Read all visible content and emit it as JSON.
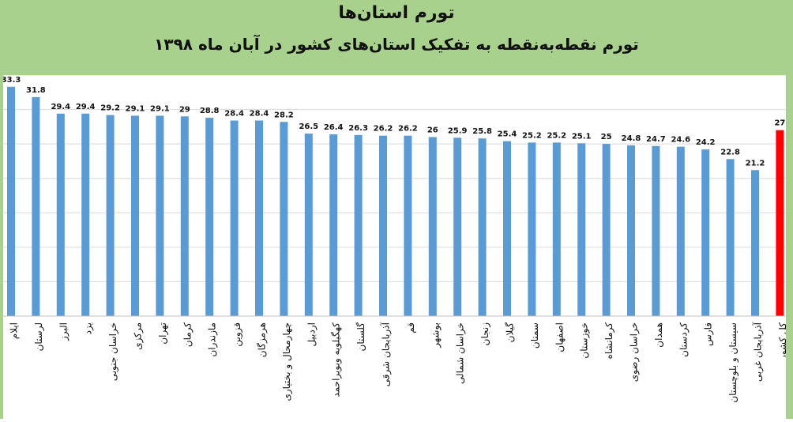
{
  "chart_data": {
    "type": "bar",
    "title": "تورم استان‌ها",
    "subtitle": "تورم نقطه‌به‌نقطه به تفکیک استان‌های کشور در آبان ماه ۱۳۹۸",
    "categories": [
      "ایلام",
      "لرستان",
      "البرز",
      "یزد",
      "خراسان جنوبی",
      "مرکزی",
      "تهران",
      "کرمان",
      "مازندران",
      "قزوین",
      "هرمزگان",
      "چهارمحال و بختیاری",
      "اردبیل",
      "کهگیلویه وبویراحمد",
      "گلستان",
      "آذربایجان شرقی",
      "قم",
      "بوشهر",
      "خراسان شمالی",
      "زنجان",
      "گیلان",
      "سمنان",
      "اصفهان",
      "خوزستان",
      "کرمانشاه",
      "خراسان رضوی",
      "همدان",
      "کردستان",
      "فارس",
      "سیستان و بلوچستان",
      "آذربایجان غربی",
      "کل کشور"
    ],
    "values": [
      33.3,
      31.8,
      29.4,
      29.4,
      29.2,
      29.1,
      29.1,
      29,
      28.8,
      28.4,
      28.4,
      28.2,
      26.5,
      26.4,
      26.3,
      26.2,
      26.2,
      26,
      25.9,
      25.8,
      25.4,
      25.2,
      25.2,
      25.1,
      25,
      24.8,
      24.7,
      24.6,
      24.2,
      22.8,
      21.2,
      27
    ],
    "value_labels": [
      "33.3",
      "31.8",
      "29.4",
      "29.4",
      "29.2",
      "29.1",
      "29.1",
      "29",
      "28.8",
      "28.4",
      "28.4",
      "28.2",
      "26.5",
      "26.4",
      "26.3",
      "26.2",
      "26.2",
      "26",
      "25.9",
      "25.8",
      "25.4",
      "25.2",
      "25.2",
      "25.1",
      "25",
      "24.8",
      "24.7",
      "24.6",
      "24.2",
      "22.8",
      "21.2",
      "27"
    ],
    "ylim": [
      0,
      35
    ],
    "grid": true,
    "colors": {
      "bar": "#5b9bd5",
      "highlight": "#ff0000",
      "grid": "#d9d9d9",
      "header": "#a9d18e"
    },
    "highlight_index": 31
  }
}
